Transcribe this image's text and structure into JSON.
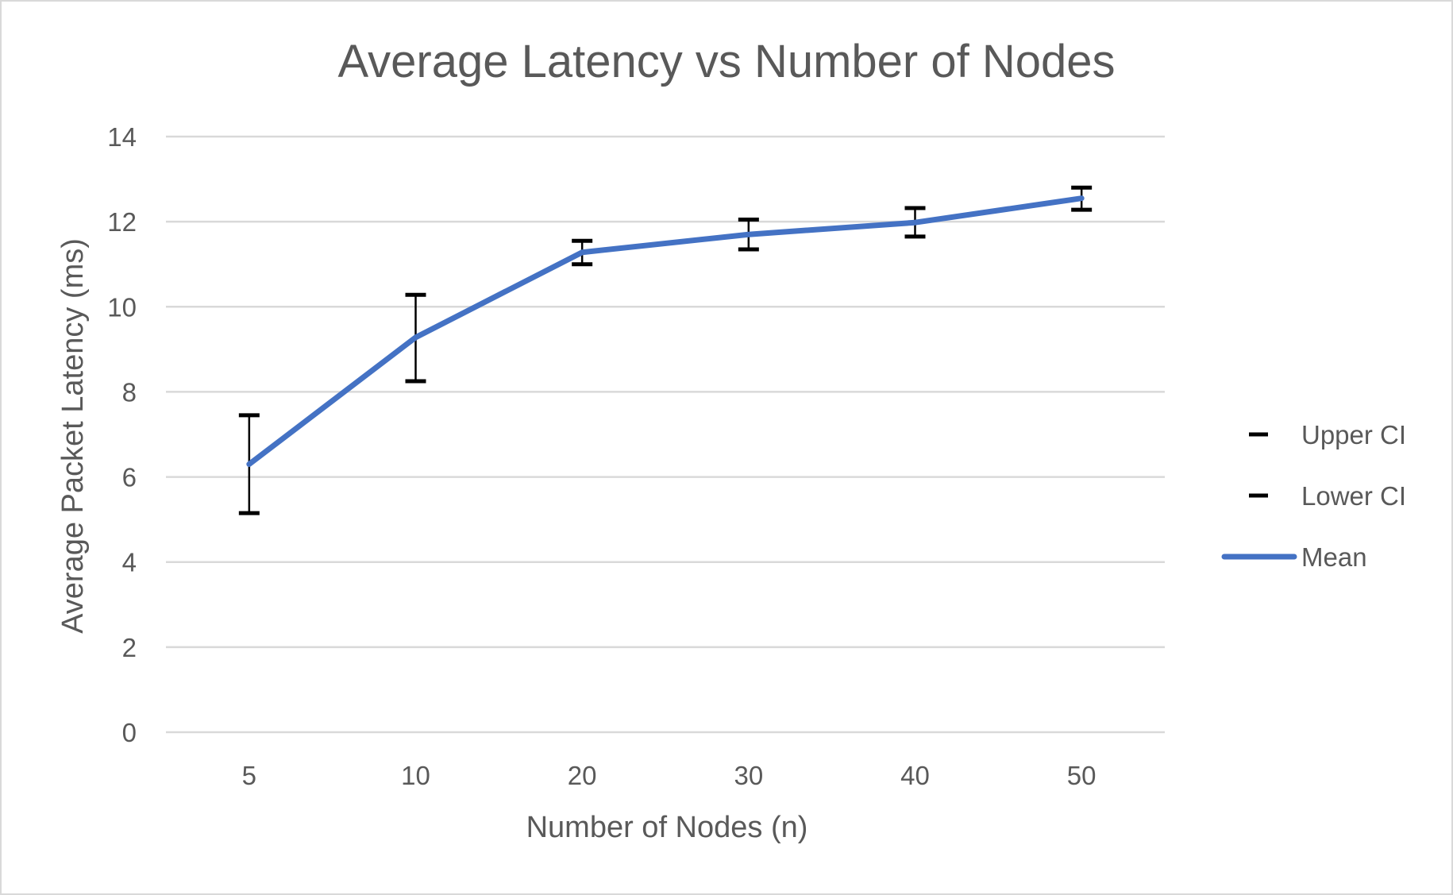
{
  "chart_data": {
    "type": "line",
    "title": "Average Latency vs Number of Nodes",
    "xlabel": "Number of Nodes (n)",
    "ylabel": "Average Packet Latency (ms)",
    "categories": [
      "5",
      "10",
      "20",
      "30",
      "40",
      "50"
    ],
    "ylim": [
      0,
      14
    ],
    "yticks": [
      0,
      2,
      4,
      6,
      8,
      10,
      12,
      14
    ],
    "grid": true,
    "legend_position": "right",
    "series": [
      {
        "name": "Upper CI",
        "values": [
          7.45,
          10.28,
          11.55,
          12.05,
          12.32,
          12.8
        ],
        "color": "#000000",
        "style": "error-bar-cap"
      },
      {
        "name": "Lower CI",
        "values": [
          5.15,
          8.25,
          11.0,
          11.35,
          11.65,
          12.28
        ],
        "color": "#000000",
        "style": "error-bar-cap"
      },
      {
        "name": "Mean",
        "values": [
          6.3,
          9.28,
          11.28,
          11.7,
          11.98,
          12.55
        ],
        "color": "#4472c4",
        "style": "line"
      }
    ]
  }
}
